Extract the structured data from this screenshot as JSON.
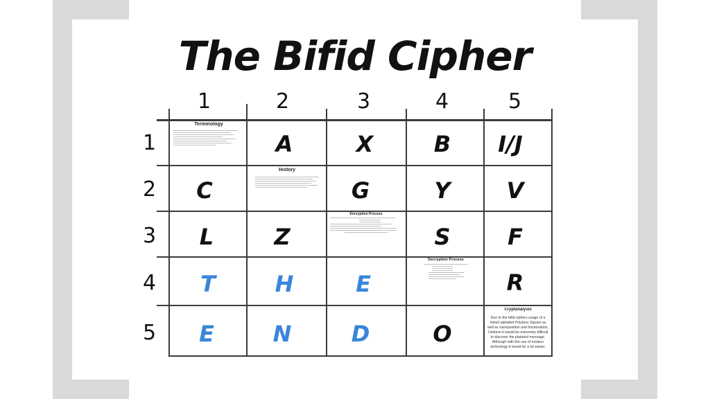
{
  "title": "The Bifid Cipher",
  "column_headers": [
    "1",
    "2",
    "3",
    "4",
    "5"
  ],
  "row_headers": [
    "1",
    "2",
    "3",
    "4",
    "5"
  ],
  "cells": {
    "r1c2": "A",
    "r1c3": "X",
    "r1c4": "B",
    "r1c5": "I/J",
    "r2c1": "C",
    "r2c3": "G",
    "r2c4": "Y",
    "r2c5": "V",
    "r3c1": "L",
    "r3c2": "Z",
    "r3c4": "S",
    "r3c5": "F",
    "r4c1": "T",
    "r4c2": "H",
    "r4c3": "E",
    "r4c5": "R",
    "r5c1": "E",
    "r5c2": "N",
    "r5c3": "D",
    "r5c4": "O"
  },
  "highlight_color": "#3a86d8",
  "thumbnails": {
    "terminology": {
      "title": "Terminology"
    },
    "history": {
      "title": "History"
    },
    "encryption": {
      "title": "Encryption Process"
    },
    "decryption": {
      "title": "Decryption Process"
    },
    "cryptanalysis": {
      "title": "Cryptanalysis",
      "body": "Due to the bifid ciphers usage of a mixed alphabet Polybius Square as well as transposition and fractionation, I believe it would be extremely difficult to discover the plaintext message. Although with the use of modern technology it would be a lot easier."
    }
  }
}
